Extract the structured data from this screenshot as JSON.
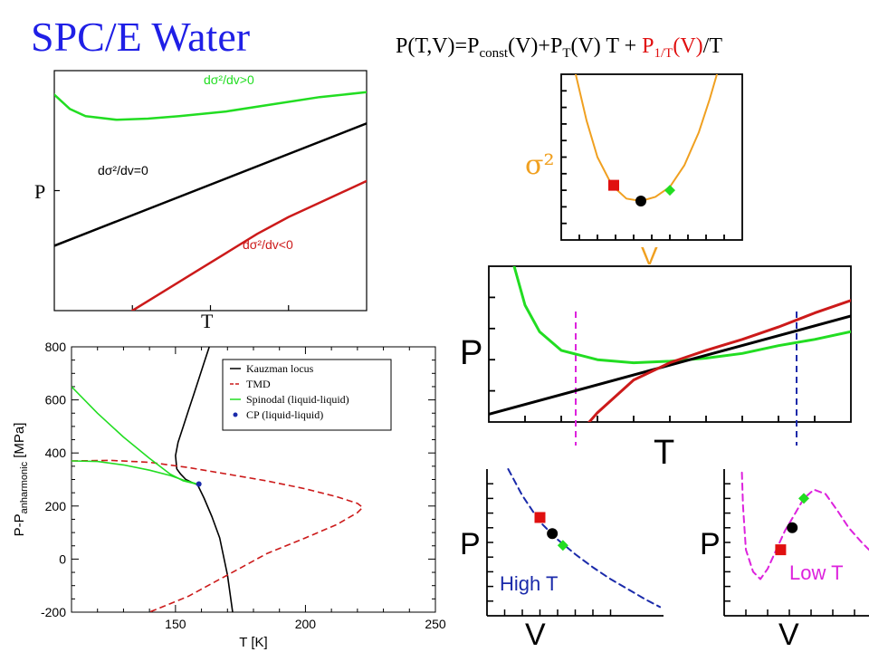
{
  "title": "SPC/E Water",
  "equation": {
    "lhs": "P(T,V)=P",
    "sub_const": "const",
    "mid": "(V)+P",
    "sub_T": "T",
    "mid2": "(V) T + ",
    "red_P": "P",
    "sub_1T": "1/T",
    "red_V": "(V)",
    "tail": "/T"
  },
  "colors": {
    "black": "#000000",
    "red": "#cc1a1a",
    "green": "#22dd22",
    "orange": "#f0a020",
    "blue": "#1a2aaa",
    "magenta": "#dd22dd",
    "title_blue": "#1f1fe6"
  },
  "chart_data": [
    {
      "id": "schematic-PT",
      "type": "line",
      "xlabel": "T",
      "ylabel": "P",
      "series": [
        {
          "name": "dσ²/dv>0",
          "label": "dσ²/dv>0",
          "color": "#22dd22",
          "x": [
            0,
            0.05,
            0.1,
            0.2,
            0.3,
            0.4,
            0.55,
            0.7,
            0.85,
            1.0
          ],
          "y": [
            0.9,
            0.84,
            0.81,
            0.795,
            0.8,
            0.81,
            0.83,
            0.86,
            0.89,
            0.91
          ]
        },
        {
          "name": "dσ²/dv=0",
          "label": "dσ²/dv=0",
          "color": "#000000",
          "x": [
            0,
            1
          ],
          "y": [
            0.27,
            0.78
          ]
        },
        {
          "name": "dσ²/dv<0",
          "label": "dσ²/dv<0",
          "color": "#cc1a1a",
          "x": [
            0.25,
            0.35,
            0.45,
            0.55,
            0.65,
            0.75,
            0.85,
            1.0
          ],
          "y": [
            0.0,
            0.08,
            0.16,
            0.24,
            0.32,
            0.39,
            0.45,
            0.54
          ]
        }
      ],
      "labels": {
        "green": "dσ²/dv>0",
        "black": "dσ²/dv=0",
        "red": "dσ²/dv<0"
      }
    },
    {
      "id": "sigma-V",
      "type": "line",
      "xlabel": "V",
      "ylabel": "σ²",
      "series": [
        {
          "name": "σ²(V)",
          "color": "#f0a020",
          "x": [
            0.08,
            0.14,
            0.2,
            0.28,
            0.36,
            0.44,
            0.52,
            0.6,
            0.68,
            0.76,
            0.82,
            0.86
          ],
          "y": [
            1.0,
            0.72,
            0.5,
            0.33,
            0.25,
            0.235,
            0.26,
            0.32,
            0.45,
            0.65,
            0.85,
            1.0
          ]
        }
      ],
      "markers": [
        {
          "shape": "square",
          "color": "#e01010",
          "x": 0.29,
          "y": 0.33
        },
        {
          "shape": "circle",
          "color": "#000000",
          "x": 0.44,
          "y": 0.235
        },
        {
          "shape": "diamond",
          "color": "#22dd22",
          "x": 0.6,
          "y": 0.3
        }
      ]
    },
    {
      "id": "schematic-PT-2",
      "type": "line",
      "xlabel": "T",
      "ylabel": "P",
      "series": [
        {
          "name": "green",
          "color": "#22dd22",
          "x": [
            0.07,
            0.1,
            0.14,
            0.2,
            0.3,
            0.4,
            0.5,
            0.6,
            0.7,
            0.8,
            0.9,
            1.0
          ],
          "y": [
            1.0,
            0.75,
            0.58,
            0.46,
            0.4,
            0.38,
            0.39,
            0.41,
            0.44,
            0.49,
            0.53,
            0.58
          ]
        },
        {
          "name": "black",
          "color": "#000000",
          "x": [
            0.0,
            1.0
          ],
          "y": [
            0.05,
            0.68
          ]
        },
        {
          "name": "red",
          "color": "#cc1a1a",
          "x": [
            0.24,
            0.3,
            0.4,
            0.5,
            0.6,
            0.7,
            0.8,
            0.9,
            1.0
          ],
          "y": [
            -0.1,
            0.06,
            0.27,
            0.38,
            0.46,
            0.53,
            0.61,
            0.7,
            0.78
          ]
        }
      ],
      "vlines": [
        {
          "color": "#dd22dd",
          "x": 0.24,
          "dashed": true
        },
        {
          "color": "#1a2aaa",
          "x": 0.85,
          "dashed": true
        }
      ]
    },
    {
      "id": "high-T",
      "type": "line",
      "xlabel": "V",
      "ylabel": "P",
      "annotation": "High T",
      "series": [
        {
          "name": "High T",
          "color": "#1a2aaa",
          "dashed": true,
          "x": [
            0.12,
            0.2,
            0.3,
            0.4,
            0.5,
            0.6,
            0.7,
            0.8,
            0.9,
            0.98
          ],
          "y": [
            1.0,
            0.82,
            0.64,
            0.52,
            0.42,
            0.33,
            0.25,
            0.18,
            0.11,
            0.06
          ]
        }
      ],
      "markers": [
        {
          "shape": "square",
          "color": "#e01010",
          "x": 0.3,
          "y": 0.67
        },
        {
          "shape": "circle",
          "color": "#000000",
          "x": 0.37,
          "y": 0.56
        },
        {
          "shape": "diamond",
          "color": "#22dd22",
          "x": 0.43,
          "y": 0.48
        }
      ]
    },
    {
      "id": "low-T",
      "type": "line",
      "xlabel": "V",
      "ylabel": "P",
      "annotation": "Low T",
      "series": [
        {
          "name": "Low T",
          "color": "#dd22dd",
          "dashed": true,
          "x": [
            0.12,
            0.13,
            0.15,
            0.2,
            0.25,
            0.3,
            0.36,
            0.42,
            0.48,
            0.55,
            0.62,
            0.7,
            0.78,
            0.86,
            0.95,
            1.0
          ],
          "y": [
            1.05,
            0.75,
            0.45,
            0.3,
            0.25,
            0.32,
            0.45,
            0.58,
            0.68,
            0.8,
            0.86,
            0.83,
            0.72,
            0.6,
            0.5,
            0.45
          ]
        }
      ],
      "markers": [
        {
          "shape": "square",
          "color": "#e01010",
          "x": 0.39,
          "y": 0.45
        },
        {
          "shape": "circle",
          "color": "#000000",
          "x": 0.47,
          "y": 0.6
        },
        {
          "shape": "diamond",
          "color": "#22dd22",
          "x": 0.55,
          "y": 0.8
        }
      ]
    },
    {
      "id": "phase-diagram",
      "type": "line",
      "xlabel": "T [K]",
      "ylabel": "P-P",
      "ylabel_sub": "anharmonic",
      "ylabel_tail": " [MPa]",
      "xlim": [
        110,
        250
      ],
      "ylim": [
        -200,
        800
      ],
      "xticks": [
        150,
        200,
        250
      ],
      "yticks": [
        -200,
        0,
        200,
        400,
        600,
        800
      ],
      "legend": {
        "placement": "top-right",
        "entries": [
          {
            "name": "Kauzman locus",
            "color": "#000000",
            "style": "solid"
          },
          {
            "name": "TMD",
            "color": "#cc1a1a",
            "style": "dashed"
          },
          {
            "name": "Spinodal (liquid-liquid)",
            "color": "#22dd22",
            "style": "solid"
          },
          {
            "name": "CP (liquid-liquid)",
            "color": "#1a2aaa",
            "style": "dot"
          }
        ]
      },
      "series": [
        {
          "name": "Kauzman locus",
          "color": "#000000",
          "style": "solid",
          "x": [
            163,
            161,
            159,
            157,
            155,
            153,
            151,
            150,
            150.5,
            152,
            154,
            156,
            158.5,
            161,
            164,
            167,
            170,
            172
          ],
          "y": [
            800,
            740,
            680,
            620,
            560,
            500,
            440,
            390,
            340,
            320,
            300,
            290,
            280,
            230,
            160,
            80,
            -60,
            -200
          ]
        },
        {
          "name": "TMD",
          "color": "#cc1a1a",
          "style": "dashed",
          "x": [
            110,
            125,
            140,
            155,
            170,
            185,
            200,
            212,
            220,
            222,
            220,
            212,
            200,
            185,
            170,
            155,
            140
          ],
          "y": [
            370,
            372,
            365,
            345,
            320,
            295,
            265,
            235,
            210,
            195,
            175,
            130,
            80,
            20,
            -60,
            -140,
            -200
          ]
        },
        {
          "name": "Spinodal upper",
          "color": "#22dd22",
          "style": "solid",
          "x": [
            110,
            120,
            130,
            140,
            148,
            153,
            158
          ],
          "y": [
            650,
            550,
            460,
            380,
            320,
            295,
            283
          ]
        },
        {
          "name": "Spinodal lower",
          "color": "#22dd22",
          "style": "solid",
          "x": [
            110,
            120,
            130,
            140,
            148,
            153,
            158
          ],
          "y": [
            370,
            368,
            355,
            335,
            315,
            298,
            284
          ]
        }
      ],
      "points": [
        {
          "name": "CP (liquid-liquid)",
          "color": "#1a2aaa",
          "x": 159,
          "y": 283
        }
      ]
    }
  ]
}
